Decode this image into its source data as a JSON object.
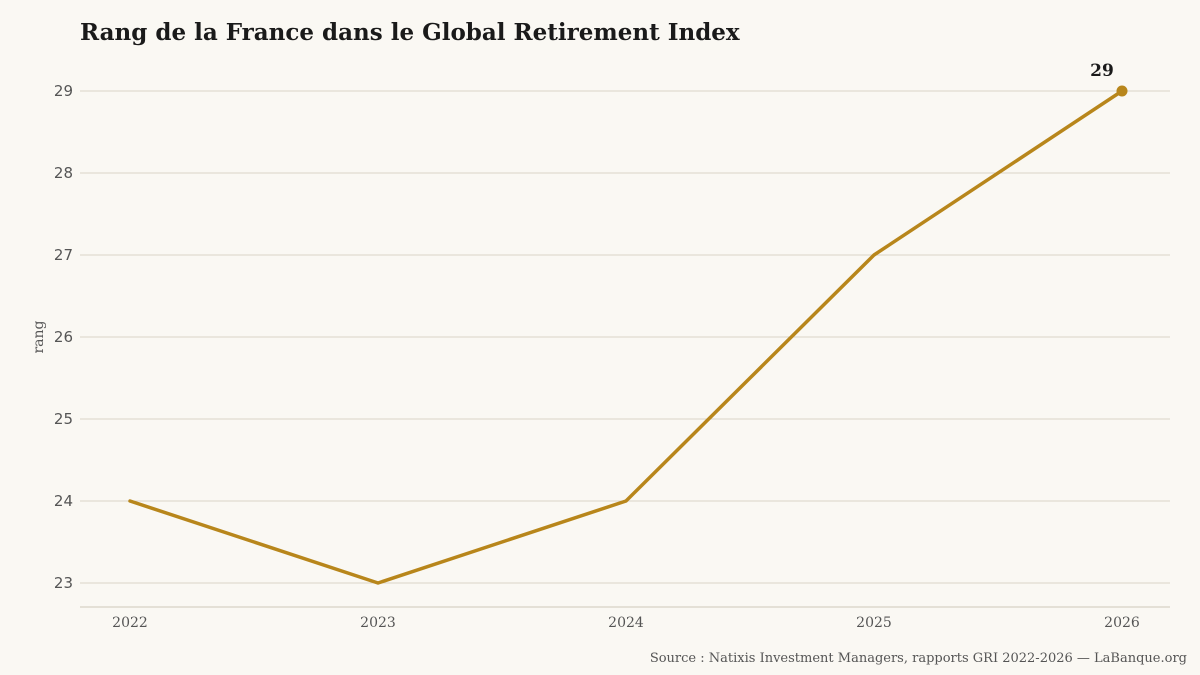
{
  "chart_data": {
    "type": "line",
    "title": "Rang de la France dans le Global Retirement Index",
    "xlabel": "",
    "ylabel": "rang",
    "x": [
      "2022",
      "2023",
      "2024",
      "2025",
      "2026"
    ],
    "series": [
      {
        "values": [
          24,
          23,
          24,
          27,
          29
        ]
      }
    ],
    "yticks": [
      23,
      24,
      25,
      26,
      27,
      28,
      29
    ],
    "ylim": [
      23,
      29
    ],
    "end_label": "29",
    "grid": true,
    "legend": "none",
    "colors": {
      "line": "#b8861b",
      "grid": "#d9d3c7",
      "background": "#faf8f3"
    }
  },
  "source": "Source : Natixis Investment Managers, rapports GRI 2022-2026 — LaBanque.org"
}
